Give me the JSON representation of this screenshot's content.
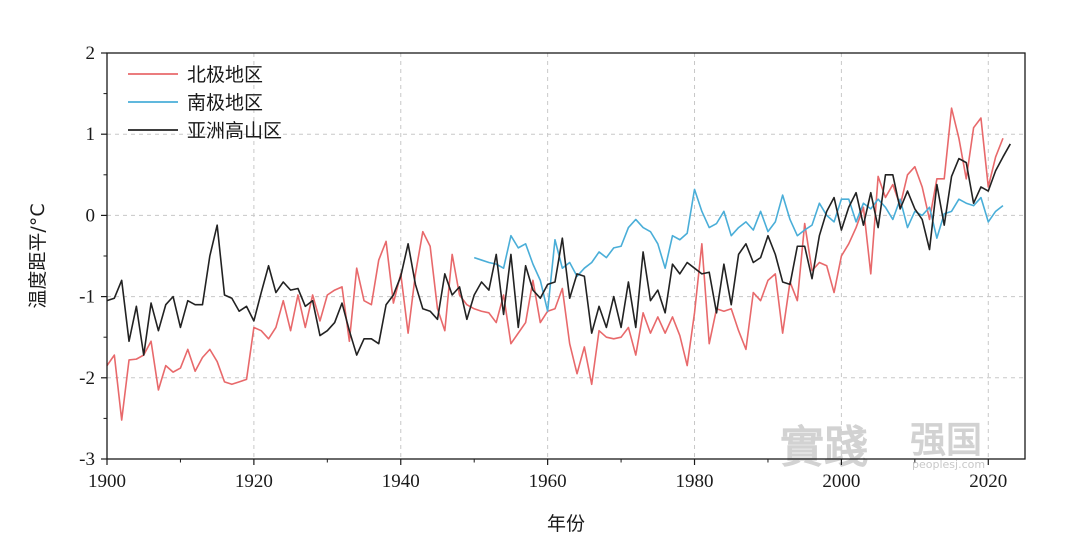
{
  "chart_data": {
    "type": "line",
    "title": "",
    "xlabel": "年份",
    "ylabel": "温度距平/°C",
    "xlim": [
      1900,
      2025
    ],
    "ylim": [
      -3,
      2
    ],
    "xticks": [
      1900,
      1920,
      1940,
      1960,
      1980,
      2000,
      2020
    ],
    "yticks": [
      -3,
      -2,
      -1,
      0,
      1,
      2
    ],
    "xtick_labels": [
      "1900",
      "1920",
      "1940",
      "1960",
      "1980",
      "2000",
      "2020"
    ],
    "ytick_labels": [
      "-3",
      "-2",
      "-1",
      "0",
      "1",
      "2"
    ],
    "grid": true,
    "legend_position": "top-left",
    "series": [
      {
        "name": "北极地区",
        "color": "#e8696b",
        "x_start": 1900,
        "values": [
          -1.85,
          -1.72,
          -2.52,
          -1.78,
          -1.77,
          -1.72,
          -1.55,
          -2.15,
          -1.85,
          -1.93,
          -1.88,
          -1.65,
          -1.92,
          -1.75,
          -1.65,
          -1.8,
          -2.05,
          -2.08,
          -2.05,
          -2.02,
          -1.38,
          -1.42,
          -1.52,
          -1.38,
          -1.05,
          -1.42,
          -0.98,
          -1.38,
          -0.98,
          -1.3,
          -0.98,
          -0.92,
          -0.88,
          -1.55,
          -0.65,
          -1.05,
          -1.1,
          -0.55,
          -0.32,
          -1.08,
          -0.72,
          -1.45,
          -0.72,
          -0.2,
          -0.38,
          -1.15,
          -1.42,
          -0.48,
          -0.98,
          -1.1,
          -1.15,
          -1.18,
          -1.2,
          -1.32,
          -0.98,
          -1.58,
          -1.45,
          -1.32,
          -0.8,
          -1.32,
          -1.18,
          -1.15,
          -0.9,
          -1.58,
          -1.95,
          -1.62,
          -2.08,
          -1.42,
          -1.5,
          -1.52,
          -1.5,
          -1.38,
          -1.72,
          -1.2,
          -1.45,
          -1.25,
          -1.45,
          -1.25,
          -1.48,
          -1.85,
          -1.2,
          -0.35,
          -1.58,
          -1.15,
          -1.18,
          -1.15,
          -1.42,
          -1.65,
          -0.95,
          -1.05,
          -0.8,
          -0.72,
          -1.45,
          -0.82,
          -1.05,
          -0.1,
          -0.68,
          -0.58,
          -0.62,
          -0.95,
          -0.5,
          -0.35,
          -0.15,
          0.1,
          -0.72,
          0.48,
          0.22,
          0.38,
          0.12,
          0.5,
          0.6,
          0.35,
          -0.05,
          0.45,
          0.45,
          1.32,
          0.95,
          0.45,
          1.08,
          1.2,
          0.35,
          0.72,
          0.95
        ]
      },
      {
        "name": "南极地区",
        "color": "#4aaed8",
        "x_start": 1950,
        "values": [
          -0.52,
          -0.55,
          -0.58,
          -0.6,
          -0.65,
          -0.25,
          -0.4,
          -0.35,
          -0.6,
          -0.8,
          -1.18,
          -0.3,
          -0.65,
          -0.58,
          -0.75,
          -0.65,
          -0.58,
          -0.45,
          -0.52,
          -0.4,
          -0.38,
          -0.15,
          -0.05,
          -0.15,
          -0.2,
          -0.35,
          -0.65,
          -0.25,
          -0.3,
          -0.22,
          0.32,
          0.05,
          -0.15,
          -0.1,
          0.05,
          -0.25,
          -0.15,
          -0.08,
          -0.18,
          0.05,
          -0.2,
          -0.08,
          0.25,
          -0.05,
          -0.25,
          -0.18,
          -0.12,
          0.15,
          0.0,
          -0.08,
          0.2,
          0.2,
          -0.08,
          0.15,
          0.08,
          0.2,
          0.1,
          -0.05,
          0.2,
          -0.15,
          0.05,
          0.0,
          0.1,
          -0.28,
          0.02,
          0.05,
          0.2,
          0.15,
          0.12,
          0.22,
          -0.08,
          0.05,
          0.12
        ]
      },
      {
        "name": "亚洲高山区",
        "color": "#222222",
        "x_start": 1900,
        "values": [
          -1.05,
          -1.02,
          -0.8,
          -1.55,
          -1.12,
          -1.72,
          -1.08,
          -1.42,
          -1.1,
          -1.0,
          -1.38,
          -1.05,
          -1.1,
          -1.1,
          -0.5,
          -0.12,
          -0.98,
          -1.02,
          -1.18,
          -1.12,
          -1.3,
          -0.95,
          -0.62,
          -0.95,
          -0.82,
          -0.92,
          -0.9,
          -1.12,
          -1.05,
          -1.48,
          -1.42,
          -1.32,
          -1.08,
          -1.42,
          -1.72,
          -1.52,
          -1.52,
          -1.58,
          -1.1,
          -0.98,
          -0.75,
          -0.35,
          -0.85,
          -1.15,
          -1.18,
          -1.28,
          -0.72,
          -0.98,
          -0.88,
          -1.28,
          -0.98,
          -0.82,
          -0.92,
          -0.48,
          -1.22,
          -0.48,
          -1.38,
          -0.62,
          -0.92,
          -1.02,
          -0.85,
          -0.82,
          -0.28,
          -1.02,
          -0.72,
          -0.75,
          -1.45,
          -1.12,
          -1.38,
          -1.0,
          -1.38,
          -0.82,
          -1.38,
          -0.45,
          -1.05,
          -0.92,
          -1.2,
          -0.6,
          -0.72,
          -0.58,
          -0.65,
          -0.72,
          -0.7,
          -1.2,
          -0.6,
          -1.1,
          -0.48,
          -0.35,
          -0.58,
          -0.52,
          -0.25,
          -0.48,
          -0.82,
          -0.85,
          -0.38,
          -0.38,
          -0.78,
          -0.25,
          0.05,
          0.22,
          -0.18,
          0.1,
          0.28,
          -0.12,
          0.28,
          -0.15,
          0.5,
          0.5,
          0.08,
          0.3,
          0.08,
          -0.05,
          -0.42,
          0.38,
          -0.12,
          0.48,
          0.7,
          0.65,
          0.15,
          0.35,
          0.3,
          0.55,
          0.72,
          0.88
        ]
      }
    ]
  },
  "watermark": {
    "main": "實踐",
    "sub": "强国",
    "url": "peoplesj.com"
  }
}
